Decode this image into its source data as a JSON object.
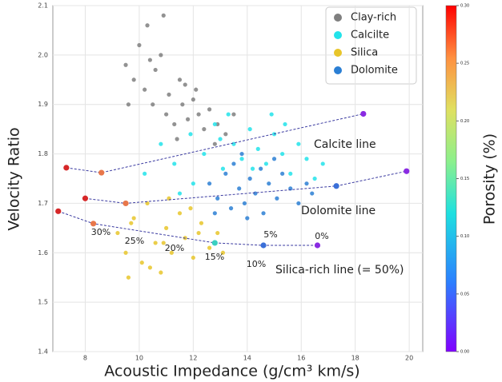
{
  "chart_data": {
    "type": "scatter",
    "xlabel": "Acoustic Impedance (g/cm³ km/s)",
    "ylabel": "Velocity Ratio",
    "xlim": [
      6.8,
      20.5
    ],
    "ylim": [
      1.4,
      2.1
    ],
    "xticks": [
      8,
      10,
      12,
      14,
      16,
      18,
      20
    ],
    "yticks": [
      1.4,
      1.5,
      1.6,
      1.7,
      1.8,
      1.9,
      {
        "value": 2,
        "label": "2.0"
      },
      2.1
    ],
    "grid": true,
    "legend": "upper right",
    "series": [
      {
        "name": "Clay-rich",
        "color": "#7f7f7f",
        "x": [
          9.5,
          9.8,
          10.0,
          10.2,
          10.3,
          10.5,
          10.6,
          10.8,
          11.0,
          11.1,
          11.3,
          11.5,
          11.6,
          11.8,
          12.0,
          12.2,
          12.4,
          12.6,
          12.9,
          13.2,
          10.4,
          10.9,
          11.4,
          12.1,
          13.5,
          9.6,
          11.7,
          12.8
        ],
        "y": [
          1.98,
          1.95,
          2.02,
          1.93,
          2.06,
          1.9,
          1.97,
          2.0,
          1.88,
          1.92,
          1.86,
          1.95,
          1.9,
          1.87,
          1.91,
          1.88,
          1.85,
          1.89,
          1.86,
          1.84,
          1.99,
          2.08,
          1.83,
          1.93,
          1.88,
          1.9,
          1.94,
          1.82
        ]
      },
      {
        "name": "Calcilte",
        "color": "#22e3ea",
        "x": [
          10.2,
          10.8,
          11.3,
          11.9,
          12.4,
          12.8,
          13.1,
          13.5,
          13.8,
          14.1,
          14.4,
          14.7,
          15.0,
          15.3,
          15.6,
          15.9,
          16.2,
          16.5,
          12.0,
          13.3,
          14.9,
          11.5,
          15.4,
          16.8,
          13.0,
          14.2
        ],
        "y": [
          1.76,
          1.82,
          1.78,
          1.84,
          1.8,
          1.86,
          1.77,
          1.82,
          1.79,
          1.85,
          1.81,
          1.78,
          1.84,
          1.8,
          1.76,
          1.82,
          1.79,
          1.75,
          1.74,
          1.88,
          1.88,
          1.72,
          1.86,
          1.78,
          1.83,
          1.77
        ]
      },
      {
        "name": "Silica",
        "color": "#e8c52a",
        "x": [
          9.2,
          9.5,
          9.8,
          10.1,
          10.3,
          10.6,
          10.8,
          11.0,
          11.2,
          11.5,
          11.7,
          12.0,
          12.3,
          12.6,
          12.9,
          9.6,
          10.4,
          11.1,
          11.9,
          10.9,
          9.7,
          12.2,
          13.1
        ],
        "y": [
          1.64,
          1.6,
          1.67,
          1.58,
          1.7,
          1.62,
          1.56,
          1.65,
          1.6,
          1.68,
          1.63,
          1.59,
          1.66,
          1.61,
          1.64,
          1.55,
          1.57,
          1.71,
          1.69,
          1.62,
          1.66,
          1.64,
          1.6
        ]
      },
      {
        "name": "Dolomite",
        "color": "#2b7fd4",
        "x": [
          12.6,
          12.9,
          13.2,
          13.4,
          13.7,
          13.9,
          14.1,
          14.3,
          14.6,
          14.8,
          15.1,
          15.3,
          15.6,
          15.9,
          16.2,
          13.5,
          14.0,
          14.5,
          15.0,
          12.8,
          16.4,
          13.8
        ],
        "y": [
          1.74,
          1.71,
          1.76,
          1.69,
          1.73,
          1.7,
          1.75,
          1.72,
          1.68,
          1.74,
          1.71,
          1.76,
          1.73,
          1.7,
          1.74,
          1.78,
          1.67,
          1.77,
          1.79,
          1.68,
          1.72,
          1.8
        ]
      }
    ],
    "template_lines": [
      {
        "label": "Calcite line",
        "x": [
          7.3,
          8.6,
          18.3
        ],
        "y": [
          1.772,
          1.762,
          1.881
        ],
        "colors": [
          "#d62728",
          "#e8774a",
          "#8a2be2"
        ]
      },
      {
        "label": "Dolomite line",
        "x": [
          8.0,
          9.5,
          17.3,
          19.9
        ],
        "y": [
          1.71,
          1.7,
          1.735,
          1.765
        ],
        "colors": [
          "#d62728",
          "#e8774a",
          "#3a6fd8",
          "#8a2be2"
        ]
      },
      {
        "label": "Silica-rich line (= 50%)",
        "x": [
          7.0,
          8.3,
          12.8,
          14.6,
          16.6
        ],
        "y": [
          1.684,
          1.659,
          1.62,
          1.615,
          1.615
        ],
        "colors": [
          "#d62728",
          "#e8774a",
          "#3ad0c0",
          "#3a6fd8",
          "#8a2be2"
        ]
      }
    ],
    "porosity_labels": [
      "30%",
      "25%",
      "20%",
      "15%",
      "10%",
      "5%",
      "0%"
    ],
    "colorbar": {
      "label": "Porosity (%)",
      "lim": [
        0,
        0.3
      ],
      "ticks": [
        {
          "value": 0,
          "label": "0.00"
        },
        {
          "value": 0.05,
          "label": "0.05"
        },
        {
          "value": 0.1,
          "label": "0.10"
        },
        {
          "value": 0.15,
          "label": "0.15"
        },
        {
          "value": 0.2,
          "label": "0.20"
        },
        {
          "value": 0.25,
          "label": "0.25"
        },
        {
          "value": 0.3,
          "label": "0.30"
        }
      ]
    }
  }
}
